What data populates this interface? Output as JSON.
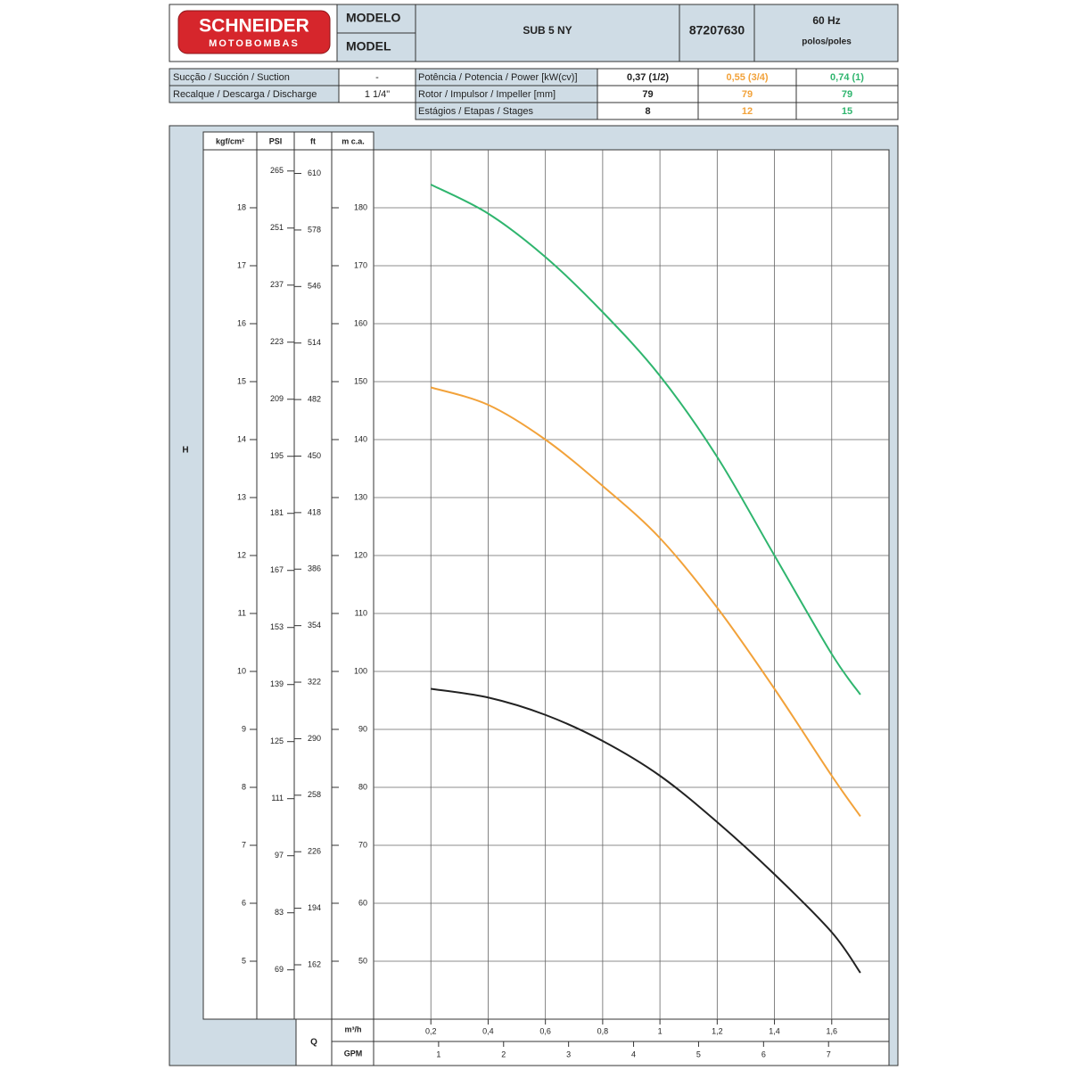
{
  "header": {
    "brand": "SCHNEIDER",
    "brand_sub": "MOTOBOMBAS",
    "model_labels": [
      "MODELO",
      "MODEL"
    ],
    "model": "SUB 5 NY",
    "code": "87207630",
    "frequency": "60 Hz",
    "poles": "polos/poles"
  },
  "specs": {
    "left": [
      [
        "Sucção / Succión / Suction",
        "-"
      ],
      [
        "Recalque / Descarga / Discharge",
        "1 1/4\""
      ]
    ],
    "right": [
      [
        "Potência / Potencia / Power [kW(cv)]",
        "0,37 (1/2)",
        "0,55 (3/4)",
        "0,74 (1)"
      ],
      [
        "Rotor / Impulsor / Impeller [mm]",
        79,
        79,
        79
      ],
      [
        "Estágios / Etapas / Stages",
        8,
        12,
        15
      ]
    ]
  },
  "chart_data": {
    "type": "line",
    "y_label": "H",
    "y_unit": "m c.a.",
    "ylim": [
      40,
      190
    ],
    "yticks": [
      50,
      60,
      70,
      80,
      90,
      100,
      110,
      120,
      130,
      140,
      150,
      160,
      170,
      180
    ],
    "secondary_axes": [
      {
        "unit": "kgf/cm²",
        "lim": [
          4,
          19
        ],
        "ticks": [
          5,
          6,
          7,
          8,
          9,
          10,
          11,
          12,
          13,
          14,
          15,
          16,
          17,
          18
        ]
      },
      {
        "unit": "PSI",
        "lim": [
          56.9,
          270.2
        ],
        "ticks": [
          69,
          83,
          97,
          111,
          125,
          139,
          153,
          167,
          181,
          195,
          209,
          223,
          237,
          251,
          265
        ]
      },
      {
        "unit": "ft",
        "lim": [
          131.2,
          623.4
        ],
        "ticks": [
          162,
          194,
          226,
          258,
          290,
          322,
          354,
          386,
          418,
          450,
          482,
          514,
          546,
          578,
          610
        ]
      }
    ],
    "x_label": "Q",
    "x_unit": "m³/h",
    "xlim": [
      0,
      1.8
    ],
    "xticks": [
      {
        "value": 0.2,
        "label": "0,2"
      },
      {
        "value": 0.4,
        "label": "0,4"
      },
      {
        "value": 0.6,
        "label": "0,6"
      },
      {
        "value": 0.8,
        "label": "0,8"
      },
      1,
      {
        "value": 1.2,
        "label": "1,2"
      },
      {
        "value": 1.4,
        "label": "1,4"
      },
      {
        "value": 1.6,
        "label": "1,6"
      }
    ],
    "x2": {
      "unit": "GPM",
      "lim": [
        0,
        7.93
      ],
      "ticks": [
        1,
        2,
        3,
        4,
        5,
        6,
        7
      ]
    },
    "grid": true,
    "x": [
      0.2,
      0.4,
      0.6,
      0.8,
      1.0,
      1.2,
      1.4,
      1.6,
      1.7
    ],
    "series": [
      {
        "color": "#222222",
        "values": [
          97,
          95.5,
          92.5,
          88,
          82,
          74,
          65,
          55,
          48
        ]
      },
      {
        "color": "#f2a23a",
        "values": [
          149,
          146,
          140,
          132,
          123,
          111,
          97,
          82,
          75
        ]
      },
      {
        "color": "#2fb56e",
        "values": [
          184,
          179,
          171.5,
          162,
          151,
          137,
          120,
          103,
          96
        ]
      }
    ]
  }
}
